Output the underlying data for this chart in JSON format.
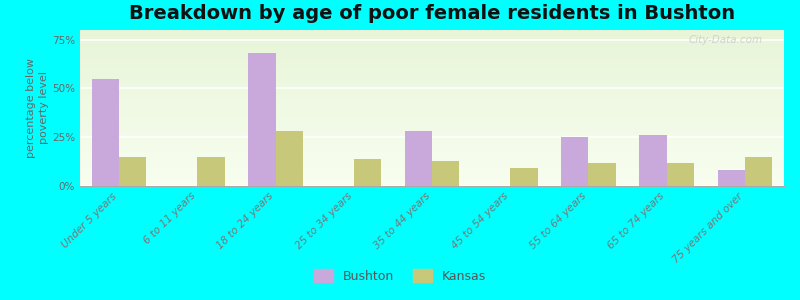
{
  "title": "Breakdown by age of poor female residents in Bushton",
  "categories": [
    "Under 5 years",
    "6 to 11 years",
    "18 to 24 years",
    "25 to 34 years",
    "35 to 44 years",
    "45 to 54 years",
    "55 to 64 years",
    "65 to 74 years",
    "75 years and over"
  ],
  "bushton_values": [
    55,
    0,
    68,
    0,
    28,
    0,
    25,
    26,
    8
  ],
  "kansas_values": [
    15,
    15,
    28,
    14,
    13,
    9,
    12,
    12,
    15
  ],
  "bushton_color": "#c9a8dc",
  "kansas_color": "#c8c87a",
  "background_color": "#00ffff",
  "ylabel": "percentage below\npoverty level",
  "ylim": [
    0,
    80
  ],
  "yticks": [
    0,
    25,
    50,
    75
  ],
  "ytick_labels": [
    "0%",
    "25%",
    "50%",
    "75%"
  ],
  "title_fontsize": 14,
  "axis_label_fontsize": 8,
  "tick_fontsize": 7.5,
  "bar_width": 0.35,
  "watermark": "City-Data.com",
  "legend_labels": [
    "Bushton",
    "Kansas"
  ]
}
